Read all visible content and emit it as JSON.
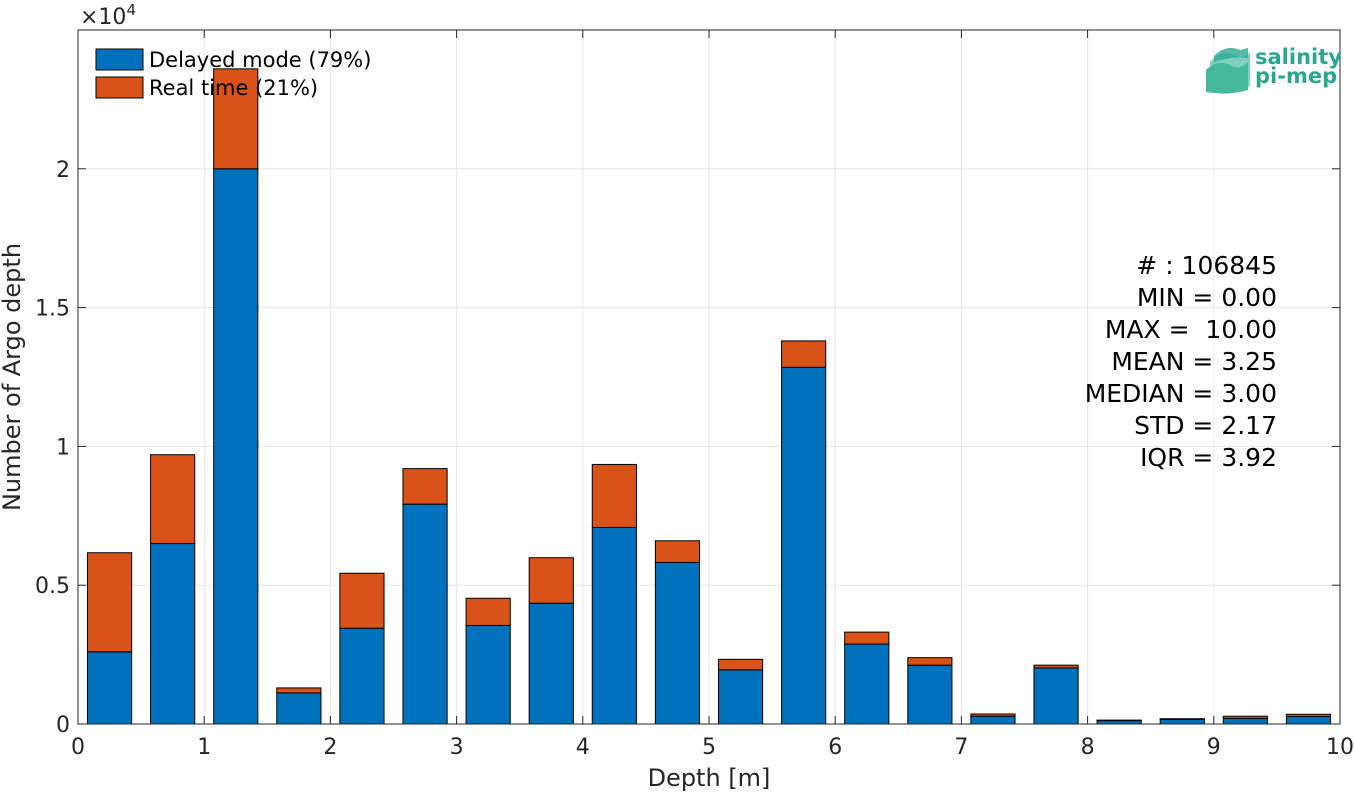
{
  "chart_data": {
    "type": "bar",
    "stacked": true,
    "xlabel": "Depth [m]",
    "ylabel": "Number of Argo depth",
    "xlim": [
      0,
      10
    ],
    "ylim": [
      0,
      25000
    ],
    "y_exponent_label": "×10",
    "y_exponent_power": "4",
    "x_ticks": [
      "0",
      "1",
      "2",
      "3",
      "4",
      "5",
      "6",
      "7",
      "8",
      "9",
      "10"
    ],
    "y_ticks": [
      "0",
      "0.5",
      "1",
      "1.5",
      "2"
    ],
    "y_tick_values": [
      0,
      5000,
      10000,
      15000,
      20000
    ],
    "grid": true,
    "legend_position": "top-left",
    "bin_centers": [
      0.25,
      0.75,
      1.25,
      1.75,
      2.25,
      2.75,
      3.25,
      3.75,
      4.25,
      4.75,
      5.25,
      5.75,
      6.25,
      6.75,
      7.25,
      7.75,
      8.25,
      8.75,
      9.25,
      9.75
    ],
    "bin_width": 0.35,
    "series": [
      {
        "name": "Delayed mode (79%)",
        "color": "#0072bd",
        "values": [
          2600,
          6500,
          20000,
          1120,
          3450,
          7920,
          3550,
          4350,
          7080,
          5820,
          1950,
          12850,
          2880,
          2120,
          280,
          2020,
          120,
          170,
          200,
          270
        ]
      },
      {
        "name": "Real time (21%)",
        "color": "#d95319",
        "values": [
          3570,
          3200,
          3600,
          180,
          1980,
          1280,
          980,
          1640,
          2270,
          780,
          380,
          950,
          430,
          270,
          80,
          100,
          20,
          20,
          80,
          80
        ]
      }
    ]
  },
  "stats": [
    "# : 106845",
    "MIN = 0.00",
    "MAX =  10.00",
    "MEAN = 3.25",
    "MEDIAN = 3.00",
    "STD = 2.17",
    "IQR = 3.92"
  ],
  "logo": {
    "line1": "salinity",
    "line2": "pi-mep",
    "color": "#2aa88f"
  }
}
